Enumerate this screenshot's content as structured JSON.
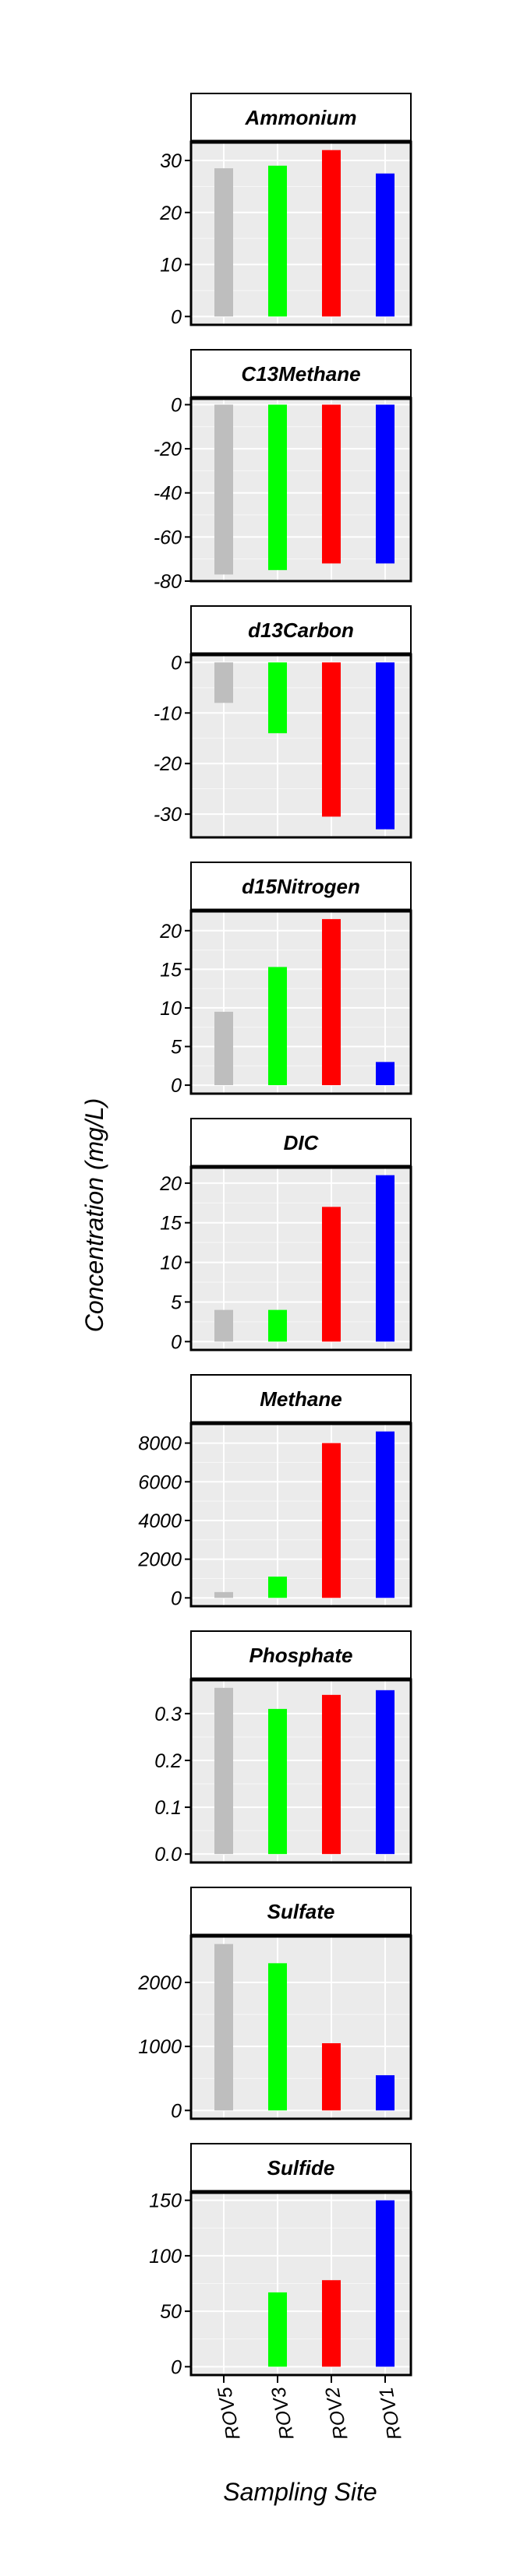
{
  "chart_data": {
    "type": "bar",
    "xlabel": "Sampling Site",
    "ylabel": "Concentration (mg/L)",
    "categories": [
      "ROV5",
      "ROV3",
      "ROV2",
      "ROV1"
    ],
    "colors": {
      "ROV5": "#bebebe",
      "ROV3": "#00ff00",
      "ROV2": "#ff0000",
      "ROV1": "#0000ff"
    },
    "grid": true,
    "facets": [
      {
        "title": "Ammonium",
        "values": [
          28.5,
          29,
          32,
          27.5
        ],
        "ylim": [
          -1.6,
          33.6
        ],
        "ticks": [
          0,
          10,
          20,
          30
        ],
        "tick_labels": [
          "0",
          "10",
          "20",
          "30"
        ]
      },
      {
        "title": "C13Methane",
        "values": [
          -77,
          -75,
          -72,
          -72
        ],
        "ylim": [
          -80,
          3
        ],
        "ticks": [
          0,
          -20,
          -40,
          -60,
          -80
        ],
        "tick_labels": [
          "0",
          "-20",
          "-40",
          "-60",
          "-80"
        ]
      },
      {
        "title": "d13Carbon",
        "values": [
          -8,
          -14,
          -30.5,
          -33
        ],
        "ylim": [
          -34.6,
          1.6
        ],
        "ticks": [
          0,
          -10,
          -20,
          -30
        ],
        "tick_labels": [
          "0",
          "-10",
          "-20",
          "-30"
        ]
      },
      {
        "title": "d15Nitrogen",
        "values": [
          9.5,
          15.3,
          21.5,
          3
        ],
        "ylim": [
          -1.1,
          22.6
        ],
        "ticks": [
          0,
          5,
          10,
          15,
          20
        ],
        "tick_labels": [
          "0",
          "5",
          "10",
          "15",
          "20"
        ]
      },
      {
        "title": "DIC",
        "values": [
          4,
          4,
          17,
          21
        ],
        "ylim": [
          -1.05,
          22.05
        ],
        "ticks": [
          0,
          5,
          10,
          15,
          20
        ],
        "tick_labels": [
          "0",
          "5",
          "10",
          "15",
          "20"
        ]
      },
      {
        "title": "Methane",
        "values": [
          300,
          1100,
          8000,
          8600
        ],
        "ylim": [
          -430,
          9030
        ],
        "ticks": [
          0,
          2000,
          4000,
          6000,
          8000
        ],
        "tick_labels": [
          "0",
          "2000",
          "4000",
          "6000",
          "8000"
        ]
      },
      {
        "title": "Phosphate",
        "values": [
          0.355,
          0.31,
          0.34,
          0.35
        ],
        "ylim": [
          -0.018,
          0.373
        ],
        "ticks": [
          0,
          0.1,
          0.2,
          0.3
        ],
        "tick_labels": [
          "0.0",
          "0.1",
          "0.2",
          "0.3"
        ]
      },
      {
        "title": "Sulfate",
        "values": [
          2600,
          2300,
          1050,
          550
        ],
        "ylim": [
          -130,
          2730
        ],
        "ticks": [
          0,
          1000,
          2000
        ],
        "tick_labels": [
          "0",
          "1000",
          "2000"
        ]
      },
      {
        "title": "Sulfide",
        "values": [
          0,
          67,
          78,
          150
        ],
        "ylim": [
          -7.5,
          157.5
        ],
        "ticks": [
          0,
          50,
          100,
          150
        ],
        "tick_labels": [
          "0",
          "50",
          "100",
          "150"
        ]
      }
    ]
  }
}
